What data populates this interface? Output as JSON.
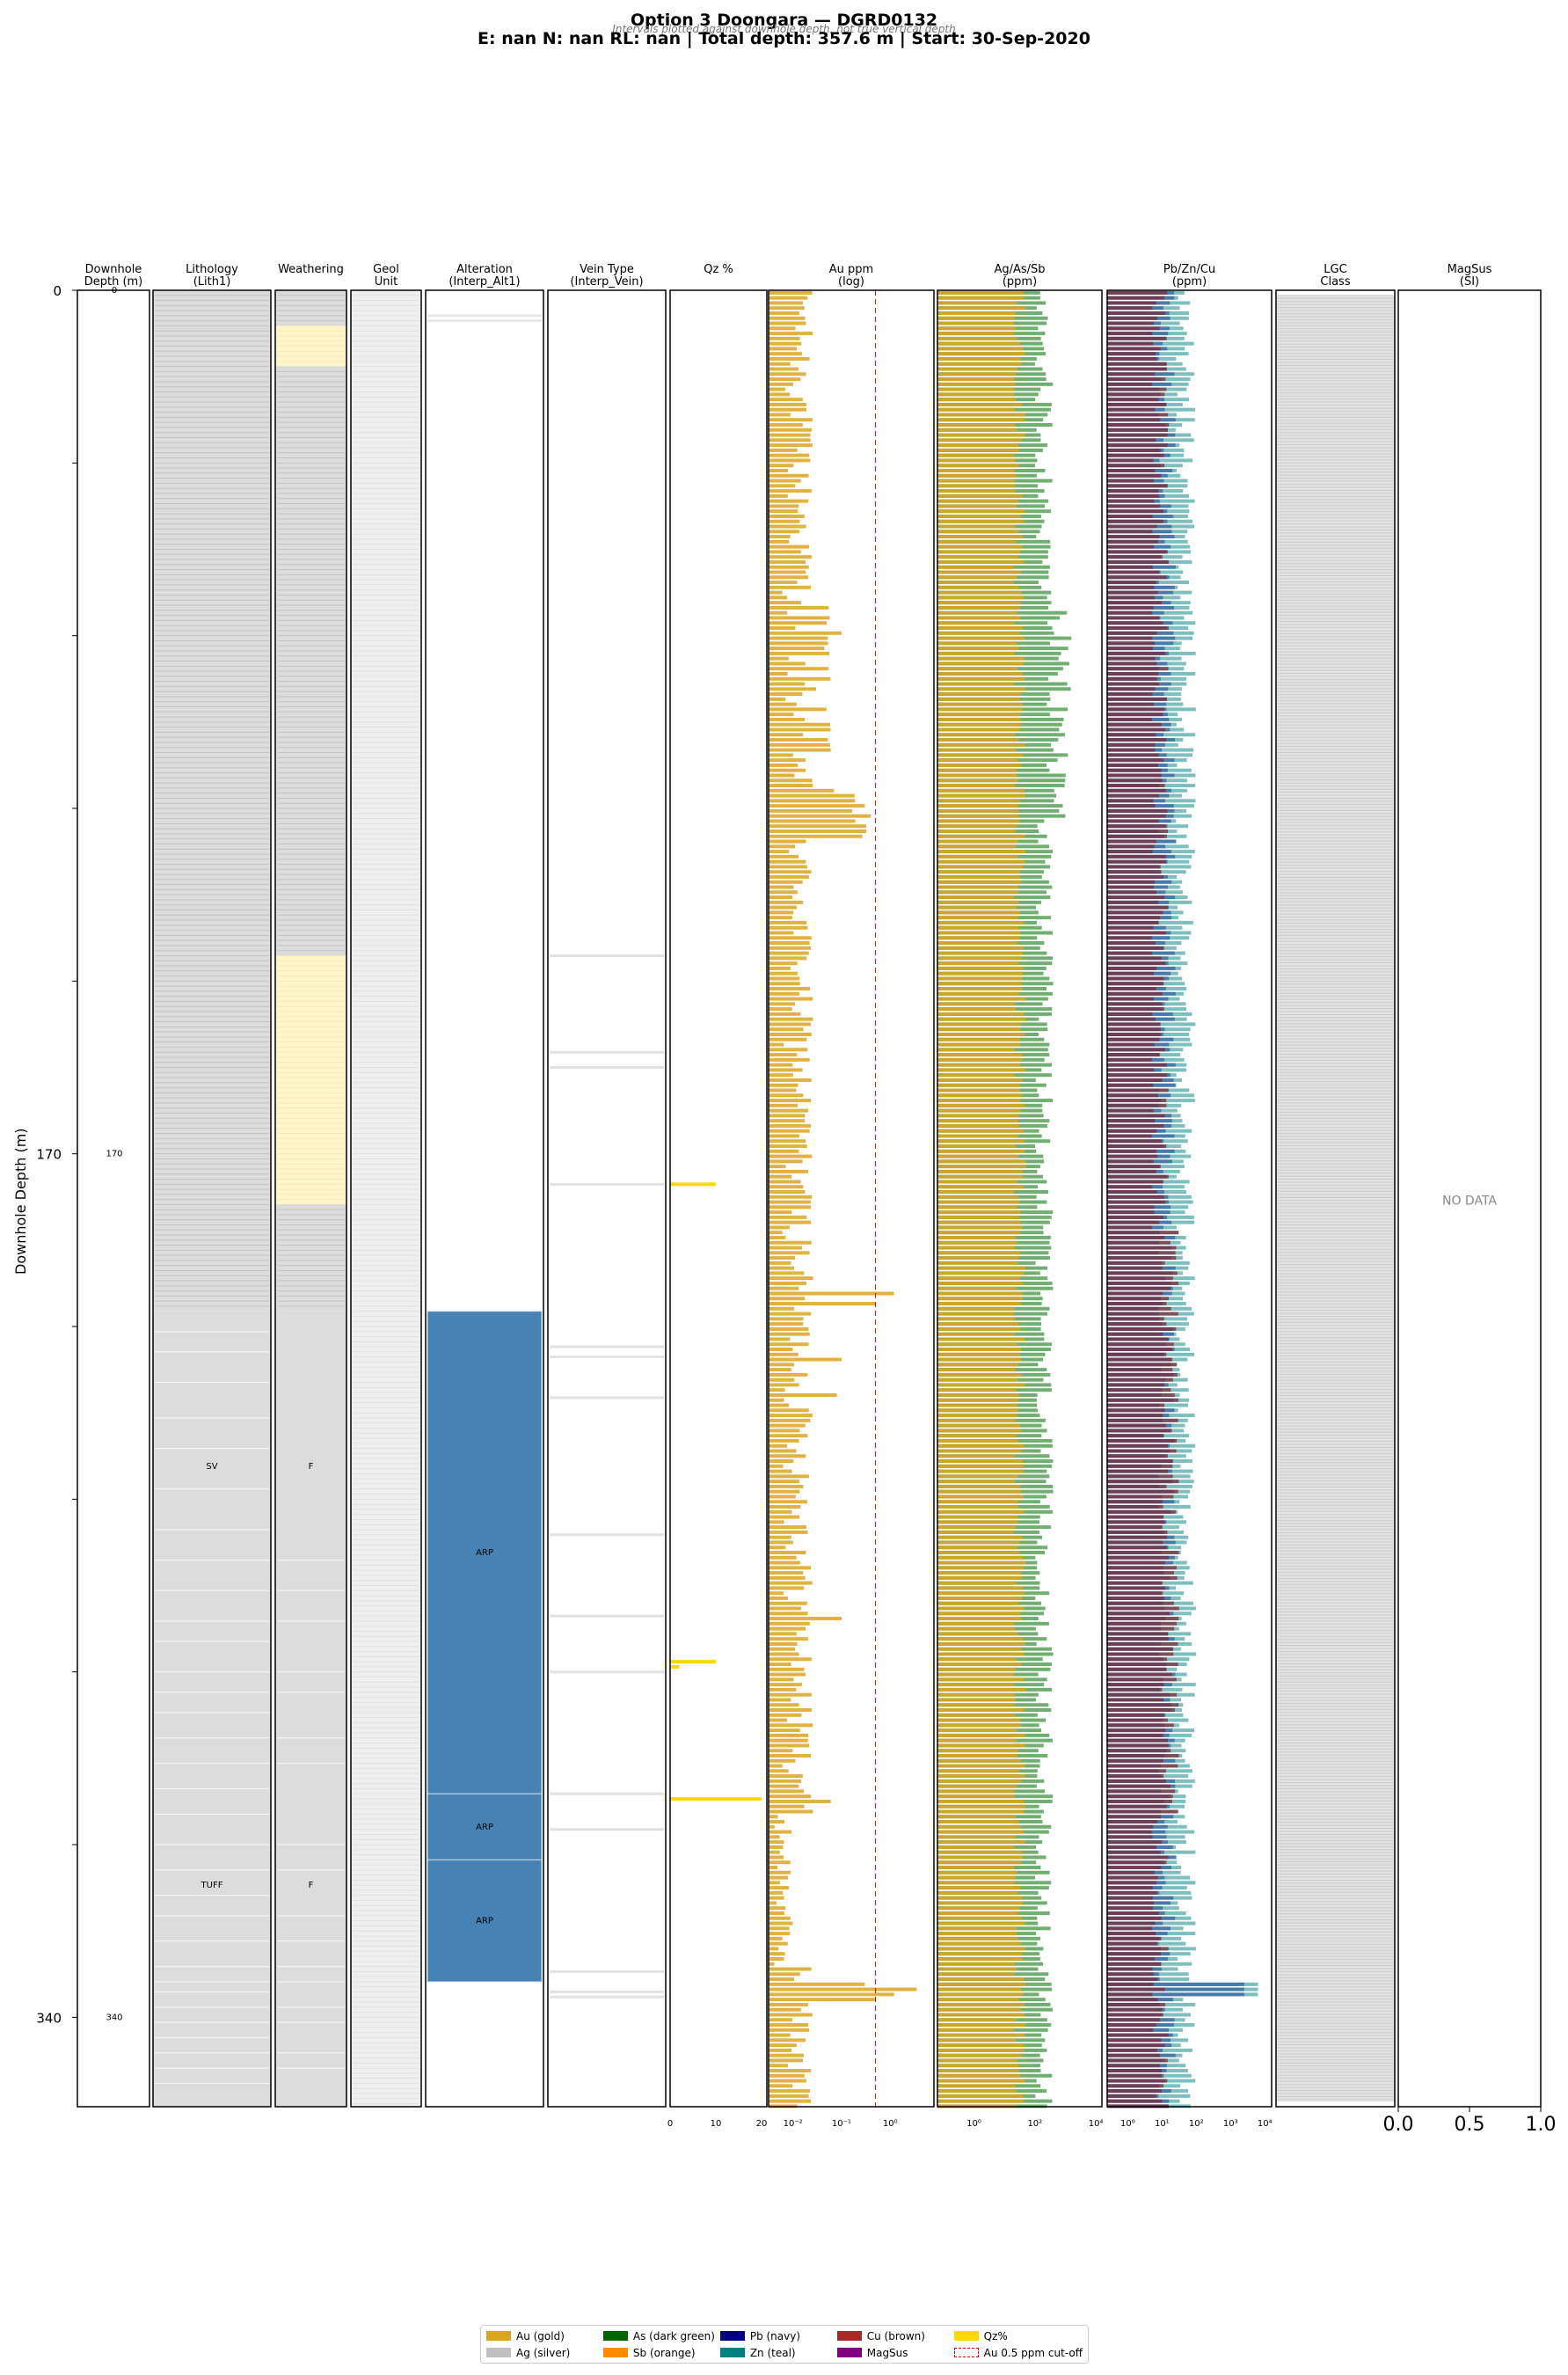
{
  "title": "Option 3 Doongara  —  DGRD0132",
  "subtitle": "E: nan  N: nan  RL: nan  |  Total depth: 357.6 m  |  Start: 30-Sep-2020",
  "note": "Intervals plotted against downhole depth, not true vertical depth",
  "y_axis_label": "Downhole Depth (m)",
  "chart_data": {
    "type": "bar",
    "depth_range": [
      0,
      357.6
    ],
    "depth_ticks": [
      0,
      170,
      340
    ],
    "tracks": [
      {
        "id": "depth",
        "title": [
          "Downhole",
          "Depth (m)"
        ]
      },
      {
        "id": "lith",
        "title": [
          "Lithology",
          "(Lith1)"
        ]
      },
      {
        "id": "weathering",
        "title": [
          "Weathering",
          ""
        ]
      },
      {
        "id": "geol",
        "title": [
          "Geol",
          "Unit"
        ]
      },
      {
        "id": "alteration",
        "title": [
          "Alteration",
          "(Interp_Alt1)"
        ]
      },
      {
        "id": "vein",
        "title": [
          "Vein Type",
          "(Interp_Vein)"
        ]
      },
      {
        "id": "qz",
        "title": [
          "Qz %",
          ""
        ]
      },
      {
        "id": "au",
        "title": [
          "Au ppm",
          "(log)"
        ]
      },
      {
        "id": "agassb",
        "title": [
          "Ag/As/Sb",
          "(ppm)"
        ]
      },
      {
        "id": "pbzncu",
        "title": [
          "Pb/Zn/Cu",
          "(ppm)"
        ]
      },
      {
        "id": "lgc",
        "title": [
          "LGC",
          "Class"
        ]
      },
      {
        "id": "magsus",
        "title": [
          "MagSus",
          "(SI)"
        ]
      }
    ],
    "lithology": [
      {
        "from": 0,
        "to": 201,
        "label": ""
      },
      {
        "from": 201,
        "to": 270,
        "label": "SV"
      },
      {
        "from": 270,
        "to": 357.6,
        "label": "TUFF"
      }
    ],
    "weathering": [
      {
        "from": 7,
        "to": 15,
        "color": "#fff5c8"
      },
      {
        "from": 131,
        "to": 180,
        "color": "#fff5c8"
      },
      {
        "from": 201,
        "to": 270,
        "label": "F"
      },
      {
        "from": 270,
        "to": 357.6,
        "label": "F"
      }
    ],
    "alteration": [
      {
        "from": 201,
        "to": 296,
        "label": "ARP",
        "color": "#4682b4"
      },
      {
        "from": 296,
        "to": 309,
        "label": "ARP",
        "color": "#4682b4"
      },
      {
        "from": 309,
        "to": 333,
        "label": "ARP",
        "color": "#4682b4"
      }
    ],
    "vein_marks": [
      131,
      150,
      153,
      176,
      208,
      210,
      218,
      245,
      261,
      272,
      296,
      303,
      331,
      335,
      336
    ],
    "qz_percent": [
      {
        "depth": 176,
        "value": 10
      },
      {
        "depth": 270,
        "value": 10
      },
      {
        "depth": 271,
        "value": 2
      },
      {
        "depth": 297,
        "value": 20
      }
    ],
    "qz_axis": {
      "ticks": [
        0,
        10,
        20
      ],
      "max": 20
    },
    "au_axis": {
      "type": "log",
      "min_exp": -2.5,
      "max_exp": 0.9,
      "ticks": [
        "10⁻²",
        "10⁻¹",
        "10⁰"
      ],
      "tick_exps": [
        -2,
        -1,
        0
      ],
      "cutoff": 0.5
    },
    "au_peaks": [
      {
        "depth": 1,
        "value": 0.02
      },
      {
        "depth": 65,
        "value": 0.05
      },
      {
        "depth": 67,
        "value": 0.1
      },
      {
        "depth": 78,
        "value": 0.03
      },
      {
        "depth": 90,
        "value": 0.06
      },
      {
        "depth": 98,
        "value": 0.07
      },
      {
        "depth": 101,
        "value": 0.3
      },
      {
        "depth": 103,
        "value": 0.4
      },
      {
        "depth": 197,
        "value": 1.2
      },
      {
        "depth": 199,
        "value": 0.5
      },
      {
        "depth": 210,
        "value": 0.1
      },
      {
        "depth": 217,
        "value": 0.08
      },
      {
        "depth": 261,
        "value": 0.1
      },
      {
        "depth": 297,
        "value": 0.06
      },
      {
        "depth": 333,
        "value": 0.3
      },
      {
        "depth": 334,
        "value": 3.5
      },
      {
        "depth": 335,
        "value": 1.2
      },
      {
        "depth": 336,
        "value": 0.5
      }
    ],
    "ag_as_sb_axis": {
      "type": "log",
      "min_exp": -1.2,
      "max_exp": 4.2,
      "ticks": [
        "10⁰",
        "10²",
        "10⁴"
      ],
      "tick_exps": [
        0,
        2,
        4
      ]
    },
    "pb_zn_cu_axis": {
      "type": "log",
      "min_exp": -0.6,
      "max_exp": 4.2,
      "ticks": [
        "10⁰",
        "10¹",
        "10²",
        "10³",
        "10⁴"
      ],
      "tick_exps": [
        0,
        1,
        2,
        3,
        4
      ]
    },
    "magsus_axis": {
      "ticks": [
        "0.0",
        "0.5",
        "1.0"
      ]
    },
    "magsus_no_data": "NO DATA",
    "depth_tick_labels": [
      "0",
      "170",
      "340"
    ],
    "legend": [
      {
        "label": "Au (gold)",
        "color": "#daa520"
      },
      {
        "label": "As (dark green)",
        "color": "#006400"
      },
      {
        "label": "Pb (navy)",
        "color": "#000080"
      },
      {
        "label": "Cu (brown)",
        "color": "#a52a2a"
      },
      {
        "label": "Qz%",
        "color": "#ffd700"
      },
      {
        "label": "Ag (silver)",
        "color": "#c0c0c0"
      },
      {
        "label": "Sb (orange)",
        "color": "#ff8c00"
      },
      {
        "label": "Zn (teal)",
        "color": "#008080"
      },
      {
        "label": "MagSus",
        "color": "#800080"
      },
      {
        "label": "Au 0.5 ppm cut-off",
        "color": "#e00000",
        "dashed": true
      }
    ]
  }
}
